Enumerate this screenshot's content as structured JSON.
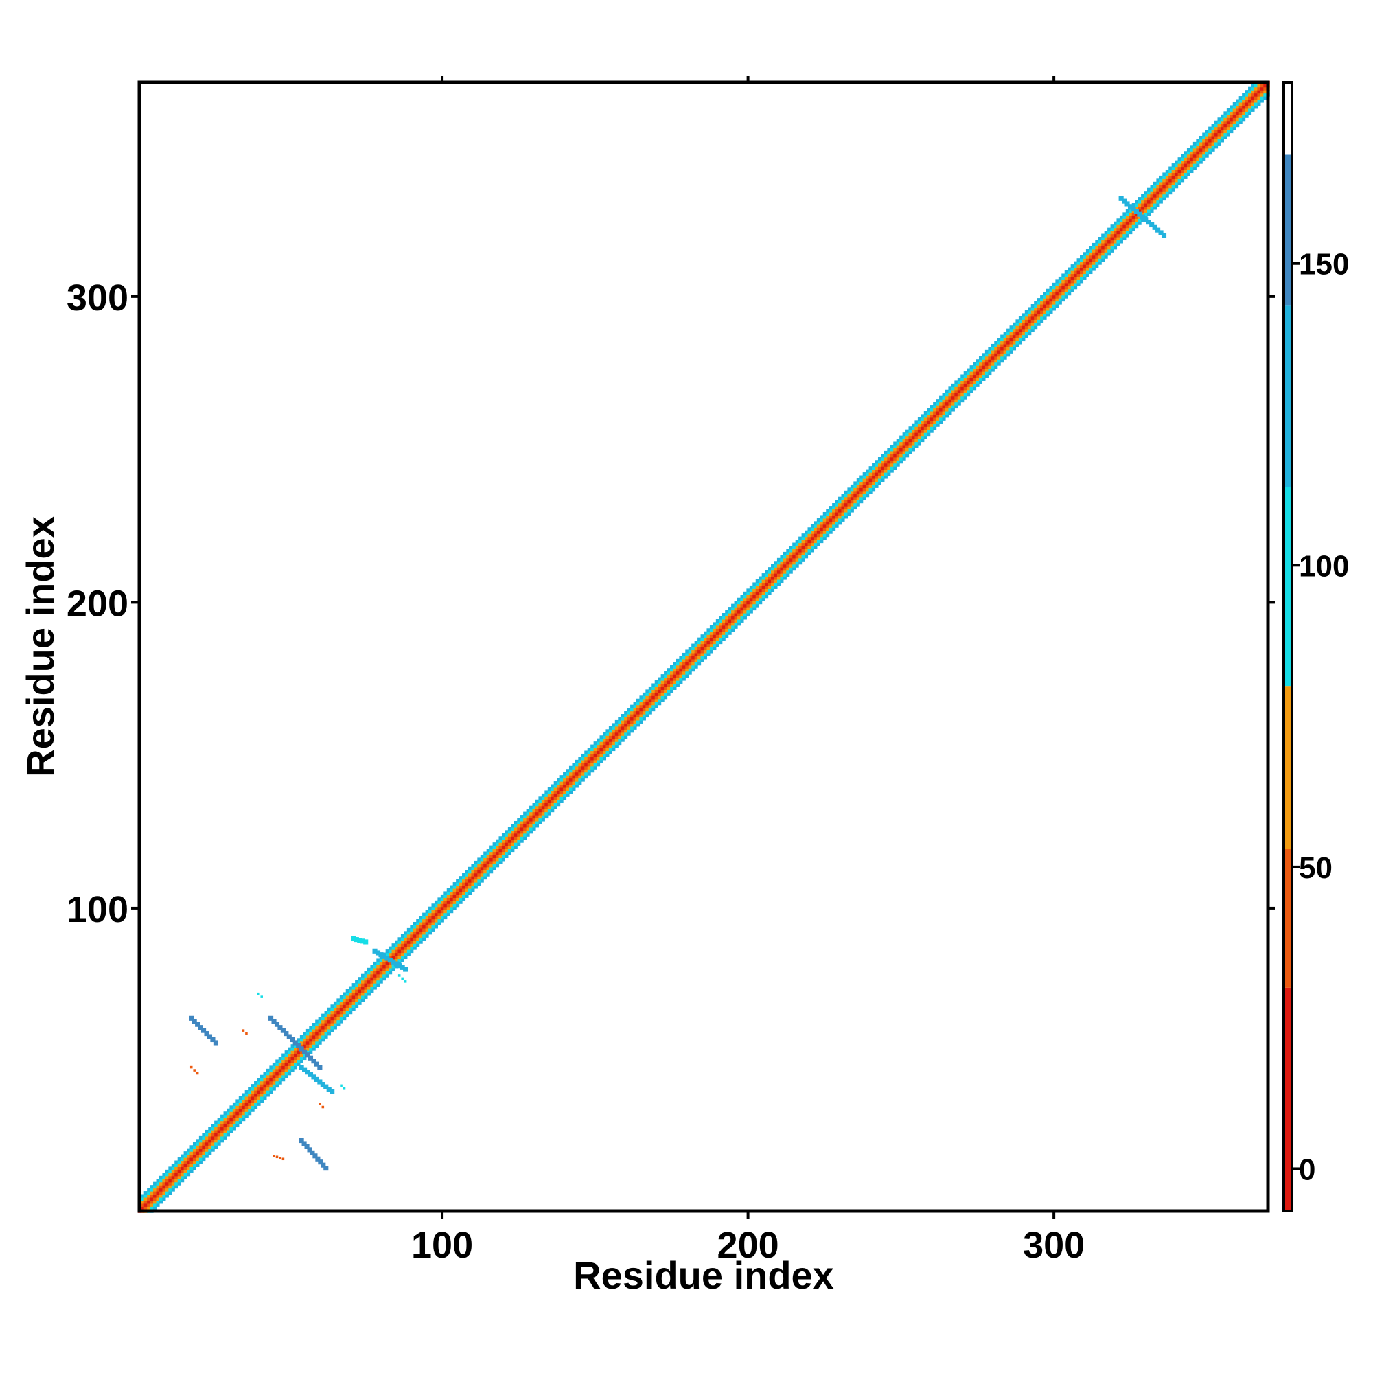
{
  "chart_data": {
    "type": "heatmap",
    "title": "",
    "xlabel": "Residue index",
    "ylabel": "Residue index",
    "xlim": [
      1,
      370
    ],
    "ylim": [
      1,
      370
    ],
    "x_ticks": [
      100,
      200,
      300
    ],
    "y_ticks": [
      100,
      200,
      300
    ],
    "x_tick_labels": [
      "100",
      "200",
      "300"
    ],
    "y_tick_labels": [
      "100",
      "200",
      "300"
    ],
    "grid": false,
    "colorbar": {
      "range": [
        -7,
        180
      ],
      "ticks": [
        0,
        50,
        100,
        150
      ],
      "tick_labels": [
        "0",
        "50",
        "100",
        "150"
      ],
      "bands": [
        {
          "from": -7,
          "to": 30,
          "color": "#dd1a10"
        },
        {
          "from": 30,
          "to": 53,
          "color": "#ec5a10"
        },
        {
          "from": 53,
          "to": 80,
          "color": "#f29a10"
        },
        {
          "from": 80,
          "to": 113,
          "color": "#16dde6"
        },
        {
          "from": 113,
          "to": 143,
          "color": "#22b2dd"
        },
        {
          "from": 143,
          "to": 168,
          "color": "#3f86c0"
        },
        {
          "from": 168,
          "to": 180,
          "color": "#ffffff"
        }
      ]
    },
    "diagonal_band": {
      "offsets": [
        0,
        1,
        2,
        3,
        4
      ],
      "values": [
        5,
        40,
        65,
        95,
        125
      ]
    },
    "off_diagonal_contacts": [
      {
        "x": [
          18,
          26
        ],
        "y": [
          64,
          56
        ],
        "value": 155
      },
      {
        "x": [
          44,
          60
        ],
        "y": [
          64,
          48
        ],
        "value": 150
      },
      {
        "x": [
          54,
          64
        ],
        "y": [
          48,
          40
        ],
        "value": 125
      },
      {
        "x": [
          54,
          62
        ],
        "y": [
          24,
          15
        ],
        "value": 150
      },
      {
        "x": [
          78,
          88
        ],
        "y": [
          86,
          80
        ],
        "value": 130
      },
      {
        "x": [
          322,
          336
        ],
        "y": [
          332,
          320
        ],
        "value": 140
      },
      {
        "x": [
          18,
          20
        ],
        "y": [
          48,
          46
        ],
        "value": 40
      },
      {
        "x": [
          45,
          48
        ],
        "y": [
          19,
          18
        ],
        "value": 45
      },
      {
        "x": [
          40,
          41
        ],
        "y": [
          72,
          71
        ],
        "value": 100
      },
      {
        "x": [
          35,
          36
        ],
        "y": [
          60,
          59
        ],
        "value": 45
      },
      {
        "x": [
          60,
          61
        ],
        "y": [
          36,
          35
        ],
        "value": 50
      },
      {
        "x": [
          67,
          68
        ],
        "y": [
          42,
          41
        ],
        "value": 100
      },
      {
        "x": [
          86,
          88
        ],
        "y": [
          78,
          76
        ],
        "value": 110
      },
      {
        "x": [
          71,
          75
        ],
        "y": [
          90,
          89
        ],
        "value": 100
      }
    ]
  }
}
